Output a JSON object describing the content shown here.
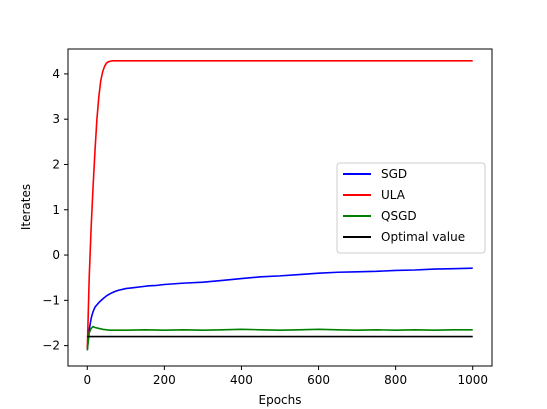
{
  "chart_data": {
    "type": "line",
    "title": "",
    "xlabel": "Epochs",
    "ylabel": "Iterates",
    "xlim": [
      -50,
      1050
    ],
    "ylim": [
      -2.45,
      4.55
    ],
    "xticks": [
      0,
      200,
      400,
      600,
      800,
      1000
    ],
    "yticks": [
      -2,
      -1,
      0,
      1,
      2,
      3,
      4
    ],
    "grid": false,
    "legend_position": "center-right",
    "series": [
      {
        "name": "SGD",
        "color": "#0000ff",
        "x": [
          0,
          5,
          10,
          15,
          20,
          30,
          40,
          50,
          60,
          70,
          80,
          100,
          120,
          140,
          160,
          180,
          200,
          250,
          300,
          350,
          400,
          450,
          500,
          550,
          600,
          650,
          700,
          750,
          800,
          850,
          900,
          950,
          1000
        ],
        "y": [
          -2.1,
          -1.65,
          -1.4,
          -1.25,
          -1.15,
          -1.05,
          -0.97,
          -0.9,
          -0.85,
          -0.81,
          -0.78,
          -0.74,
          -0.72,
          -0.7,
          -0.68,
          -0.67,
          -0.65,
          -0.62,
          -0.6,
          -0.56,
          -0.52,
          -0.48,
          -0.46,
          -0.43,
          -0.4,
          -0.38,
          -0.37,
          -0.36,
          -0.34,
          -0.33,
          -0.31,
          -0.3,
          -0.29
        ]
      },
      {
        "name": "ULA",
        "color": "#ff0000",
        "x": [
          0,
          5,
          10,
          15,
          20,
          25,
          30,
          35,
          40,
          45,
          50,
          55,
          60,
          65,
          70,
          80,
          100,
          200,
          400,
          600,
          800,
          1000
        ],
        "y": [
          -2.1,
          -0.5,
          0.6,
          1.5,
          2.3,
          3.0,
          3.5,
          3.85,
          4.05,
          4.17,
          4.24,
          4.27,
          4.28,
          4.29,
          4.29,
          4.29,
          4.29,
          4.29,
          4.29,
          4.29,
          4.29,
          4.29
        ]
      },
      {
        "name": "QSGD",
        "color": "#008000",
        "x": [
          0,
          5,
          10,
          15,
          20,
          30,
          40,
          50,
          60,
          80,
          100,
          150,
          200,
          250,
          300,
          350,
          400,
          450,
          500,
          550,
          600,
          650,
          700,
          750,
          800,
          850,
          900,
          950,
          1000
        ],
        "y": [
          -2.1,
          -1.72,
          -1.62,
          -1.58,
          -1.6,
          -1.62,
          -1.64,
          -1.65,
          -1.66,
          -1.66,
          -1.66,
          -1.65,
          -1.66,
          -1.65,
          -1.66,
          -1.65,
          -1.64,
          -1.65,
          -1.66,
          -1.65,
          -1.64,
          -1.65,
          -1.66,
          -1.65,
          -1.66,
          -1.65,
          -1.66,
          -1.65,
          -1.65
        ]
      },
      {
        "name": "Optimal value",
        "color": "#000000",
        "x": [
          0,
          1000
        ],
        "y": [
          -1.8,
          -1.8
        ]
      }
    ]
  }
}
